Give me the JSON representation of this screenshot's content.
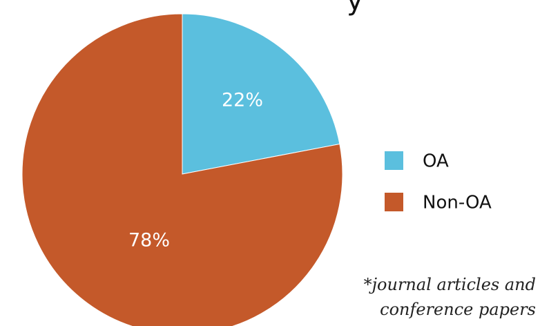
{
  "chart_data": {
    "type": "pie",
    "categories": [
      "OA",
      "Non-OA"
    ],
    "values": [
      22,
      78
    ],
    "value_labels": [
      "22%",
      "78%"
    ],
    "colors": [
      "#5bbfde",
      "#c4592a"
    ],
    "legend": {
      "placement": "right",
      "entries": [
        "OA",
        "Non-OA"
      ]
    },
    "title_fragment": "y",
    "annotation": [
      "*journal articles and",
      "conference papers"
    ]
  }
}
